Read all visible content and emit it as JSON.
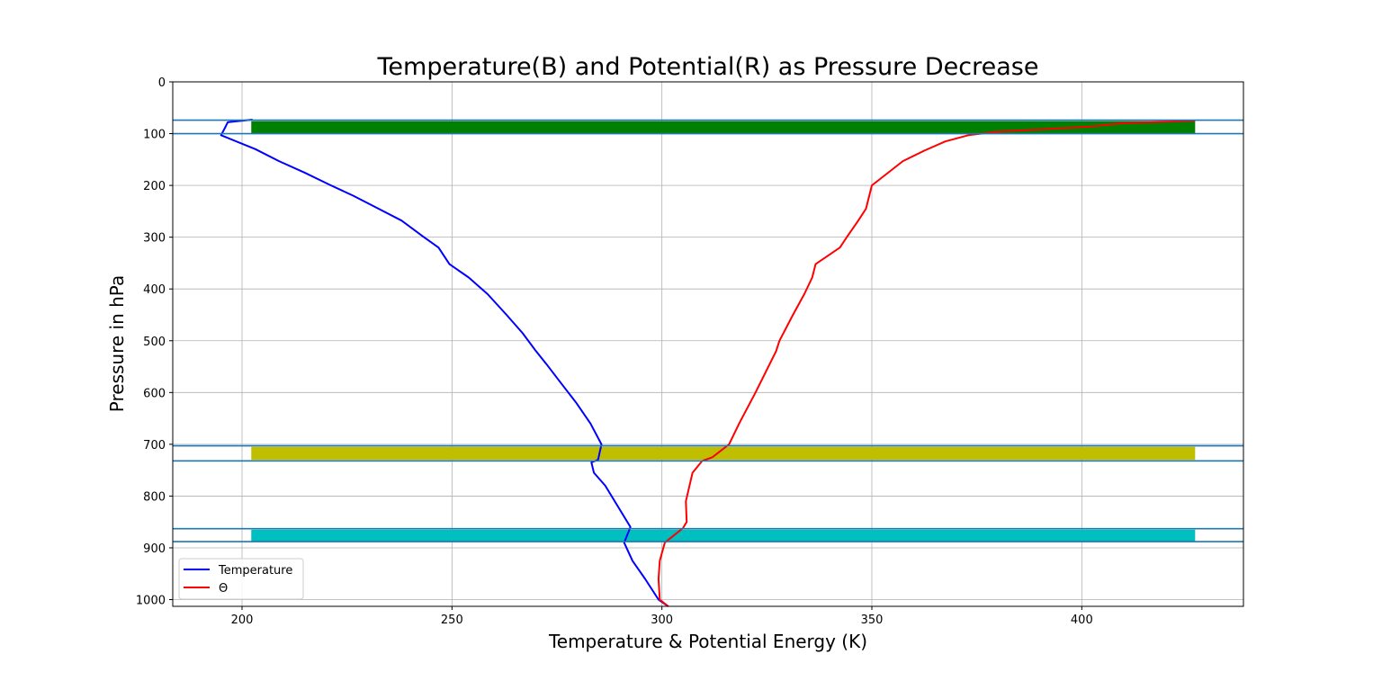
{
  "chart_data": {
    "type": "line",
    "title": "Temperature(B) and Potential(R) as Pressure Decrease",
    "xlabel": "Temperature & Potential Energy (K)",
    "ylabel": "Pressure in hPa",
    "xlim": [
      183.5,
      438.5
    ],
    "ylim": [
      1013,
      0
    ],
    "y_inverted": true,
    "grid": true,
    "x_ticks": [
      200,
      250,
      300,
      350,
      400
    ],
    "y_ticks": [
      0,
      100,
      200,
      300,
      400,
      500,
      600,
      700,
      800,
      900,
      1000
    ],
    "legend": {
      "position": "lower-left",
      "entries": [
        "Temperature",
        "Θ"
      ]
    },
    "series": [
      {
        "name": "Temperature",
        "color": "#0000ff",
        "points": [
          [
            301.5,
            1013
          ],
          [
            299.2,
            1000
          ],
          [
            296.0,
            960
          ],
          [
            293.0,
            925
          ],
          [
            291.0,
            890
          ],
          [
            292.5,
            860
          ],
          [
            289.5,
            820
          ],
          [
            286.5,
            780
          ],
          [
            283.8,
            755
          ],
          [
            283.2,
            735
          ],
          [
            284.8,
            730
          ],
          [
            285.6,
            700
          ],
          [
            283.0,
            660
          ],
          [
            279.6,
            620
          ],
          [
            275.8,
            580
          ],
          [
            272.5,
            545
          ],
          [
            270.0,
            520
          ],
          [
            266.8,
            485
          ],
          [
            263.0,
            450
          ],
          [
            258.5,
            410
          ],
          [
            254.0,
            378
          ],
          [
            249.4,
            352
          ],
          [
            246.8,
            320
          ],
          [
            243.0,
            298
          ],
          [
            238.0,
            268
          ],
          [
            232.5,
            245
          ],
          [
            226.5,
            220
          ],
          [
            221.2,
            200
          ],
          [
            214.8,
            175
          ],
          [
            208.8,
            153
          ],
          [
            203.2,
            130
          ],
          [
            195.0,
            103
          ],
          [
            196.0,
            88
          ],
          [
            196.6,
            78
          ],
          [
            202.5,
            73
          ]
        ]
      },
      {
        "name": "Θ",
        "color": "#ff0000",
        "points": [
          [
            301.5,
            1013
          ],
          [
            299.5,
            1000
          ],
          [
            299.2,
            960
          ],
          [
            299.5,
            925
          ],
          [
            300.7,
            890
          ],
          [
            305.0,
            862
          ],
          [
            305.9,
            850
          ],
          [
            305.7,
            810
          ],
          [
            307.3,
            755
          ],
          [
            309.6,
            732
          ],
          [
            312.0,
            725
          ],
          [
            316.0,
            700
          ],
          [
            318.4,
            660
          ],
          [
            322.3,
            600
          ],
          [
            327.2,
            520
          ],
          [
            328.0,
            500
          ],
          [
            331.2,
            450
          ],
          [
            333.9,
            410
          ],
          [
            335.8,
            378
          ],
          [
            336.6,
            352
          ],
          [
            342.4,
            320
          ],
          [
            344.2,
            298
          ],
          [
            346.6,
            270
          ],
          [
            348.6,
            245
          ],
          [
            350.0,
            200
          ],
          [
            357.4,
            153
          ],
          [
            362.7,
            132
          ],
          [
            367.5,
            115
          ],
          [
            373.0,
            103
          ],
          [
            380.0,
            96
          ],
          [
            392.0,
            91
          ],
          [
            402.5,
            86
          ],
          [
            409.6,
            80
          ],
          [
            427.0,
            75
          ]
        ]
      }
    ],
    "hlines": [
      74,
      100,
      703,
      732,
      863,
      888
    ],
    "bands": [
      {
        "y_top": 76,
        "y_bottom": 99,
        "x_start": 202.2,
        "x_end": 427.0,
        "color": "#008000"
      },
      {
        "y_top": 705,
        "y_bottom": 730,
        "x_start": 202.2,
        "x_end": 427.0,
        "color": "#bfbf00"
      },
      {
        "y_top": 865,
        "y_bottom": 887,
        "x_start": 202.2,
        "x_end": 427.0,
        "color": "#00bfbf"
      }
    ],
    "hline_color": "#1f77b4"
  }
}
